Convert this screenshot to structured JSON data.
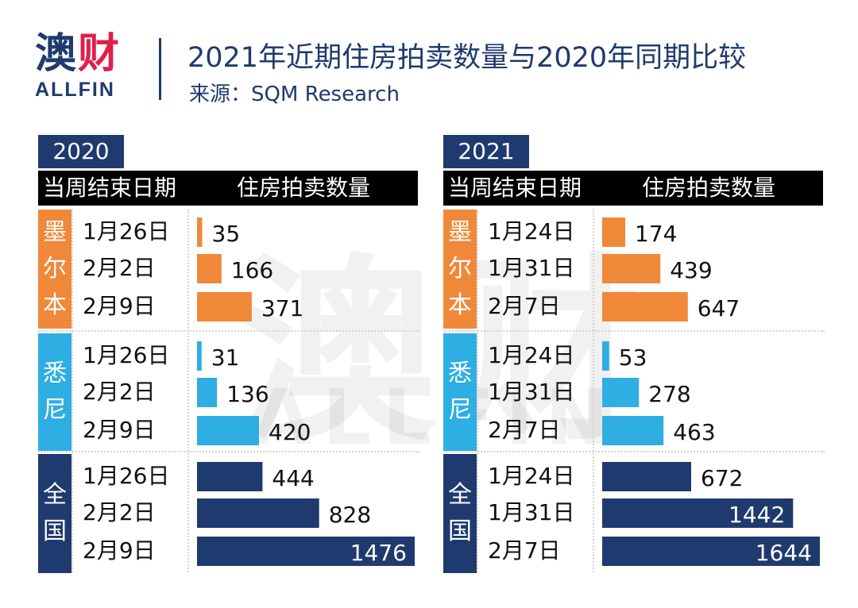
{
  "header": {
    "logo_cjk_1": "澳",
    "logo_cjk_2": "财",
    "logo_latin": "ALLFIN",
    "title": "2021年近期住房拍卖数量与2020年同期比较",
    "source": "来源：SQM Research"
  },
  "watermark": {
    "cjk": "澳财",
    "latin": "ALLFIN"
  },
  "colors": {
    "navy": "#1f3a6e",
    "melbourne": "#f0883a",
    "sydney": "#2eaee3",
    "national": "#1f3a6e",
    "header_black": "#000000",
    "logo_accent": "#e01f4a"
  },
  "table_headers": {
    "date": "当周结束日期",
    "count": "住房拍卖数量"
  },
  "chart_data": {
    "type": "bar",
    "orientation": "horizontal",
    "title": "2021年近期住房拍卖数量与2020年同期比较",
    "panels": [
      {
        "year": "2020",
        "xlim": [
          0,
          1476
        ],
        "groups": [
          {
            "name": "墨尔本",
            "color_key": "melbourne",
            "rows": [
              {
                "date": "1月26日",
                "value": 35
              },
              {
                "date": "2月2日",
                "value": 166
              },
              {
                "date": "2月9日",
                "value": 371
              }
            ]
          },
          {
            "name": "悉尼",
            "color_key": "sydney",
            "rows": [
              {
                "date": "1月26日",
                "value": 31
              },
              {
                "date": "2月2日",
                "value": 136
              },
              {
                "date": "2月9日",
                "value": 420
              }
            ]
          },
          {
            "name": "全国",
            "color_key": "national",
            "rows": [
              {
                "date": "1月26日",
                "value": 444
              },
              {
                "date": "2月2日",
                "value": 828
              },
              {
                "date": "2月9日",
                "value": 1476
              }
            ]
          }
        ]
      },
      {
        "year": "2021",
        "xlim": [
          0,
          1644
        ],
        "groups": [
          {
            "name": "墨尔本",
            "color_key": "melbourne",
            "rows": [
              {
                "date": "1月24日",
                "value": 174
              },
              {
                "date": "1月31日",
                "value": 439
              },
              {
                "date": "2月7日",
                "value": 647
              }
            ]
          },
          {
            "name": "悉尼",
            "color_key": "sydney",
            "rows": [
              {
                "date": "1月24日",
                "value": 53
              },
              {
                "date": "1月31日",
                "value": 278
              },
              {
                "date": "2月7日",
                "value": 463
              }
            ]
          },
          {
            "name": "全国",
            "color_key": "national",
            "rows": [
              {
                "date": "1月24日",
                "value": 672
              },
              {
                "date": "1月31日",
                "value": 1442
              },
              {
                "date": "2月7日",
                "value": 1644
              }
            ]
          }
        ]
      }
    ]
  }
}
